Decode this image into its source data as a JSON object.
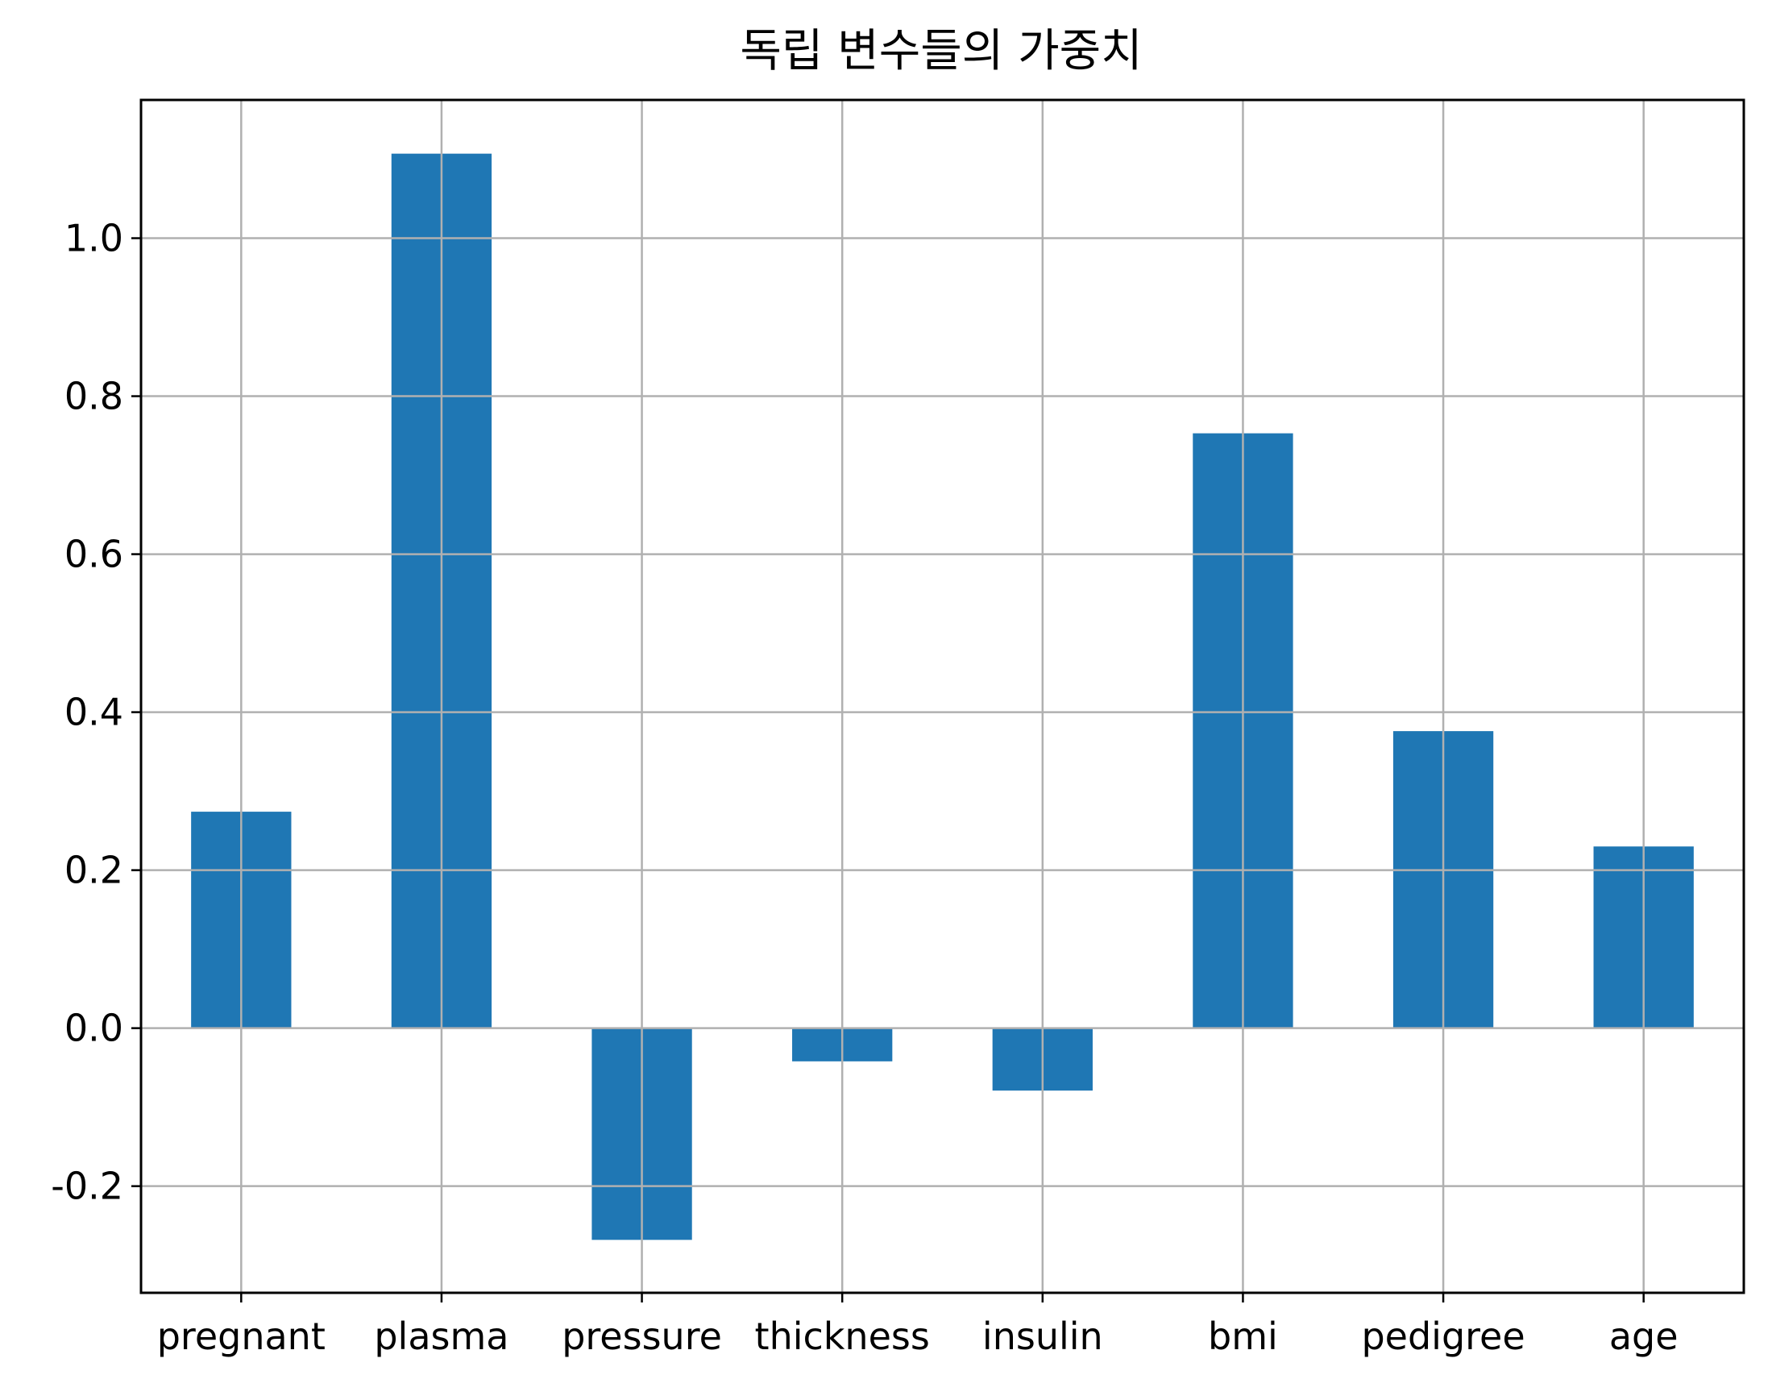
{
  "chart_data": {
    "type": "bar",
    "title": "독립 변수들의 가중치",
    "xlabel": "",
    "ylabel": "",
    "categories": [
      "pregnant",
      "plasma",
      "pressure",
      "thickness",
      "insulin",
      "bmi",
      "pedigree",
      "age"
    ],
    "values": [
      0.274,
      1.107,
      -0.268,
      -0.042,
      -0.079,
      0.753,
      0.376,
      0.23
    ],
    "ylim": [
      -0.335,
      1.175
    ],
    "yticks": [
      -0.2,
      0.0,
      0.2,
      0.4,
      0.6,
      0.8,
      1.0
    ],
    "ytick_labels": [
      "-0.2",
      "0.0",
      "0.2",
      "0.4",
      "0.6",
      "0.8",
      "1.0"
    ],
    "grid": true,
    "bar_color": "#1f77b4",
    "grid_color": "#b0b0b0"
  }
}
